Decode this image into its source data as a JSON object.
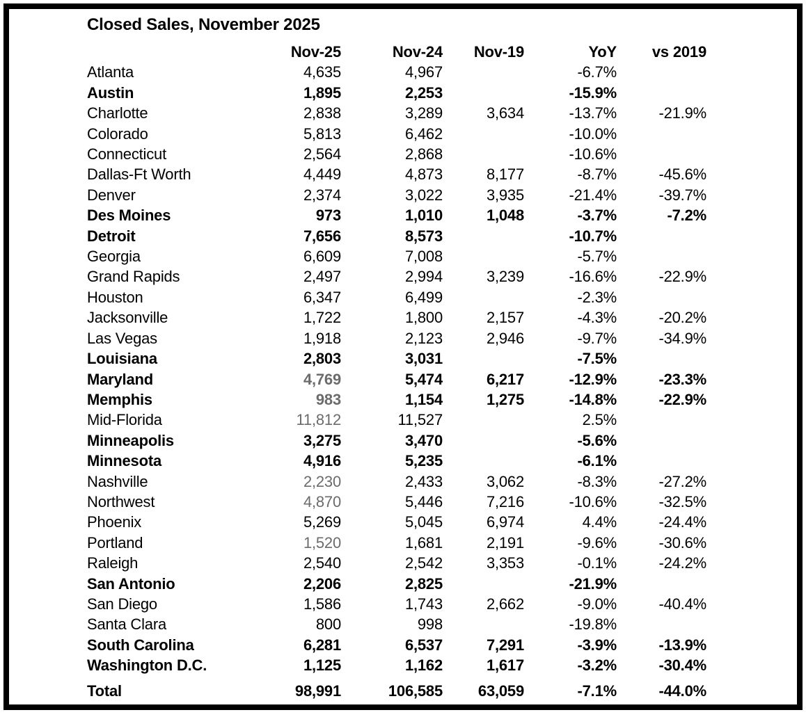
{
  "title": "Closed Sales, November 2025",
  "colors": {
    "text": "#000000",
    "muted_value": "#6b6b6b",
    "frame_border": "#000000",
    "background": "#ffffff"
  },
  "chart_data": {
    "type": "table",
    "title": "Closed Sales, November 2025",
    "columns": [
      "",
      "Nov-25",
      "Nov-24",
      "Nov-19",
      "YoY",
      "vs 2019"
    ],
    "rows": [
      {
        "label": "Atlanta",
        "nov25": "4,635",
        "nov24": "4,967",
        "nov19": "",
        "yoy": "-6.7%",
        "vs2019": "",
        "bold": false,
        "nov25_gray": false
      },
      {
        "label": "Austin",
        "nov25": "1,895",
        "nov24": "2,253",
        "nov19": "",
        "yoy": "-15.9%",
        "vs2019": "",
        "bold": true,
        "nov25_gray": false
      },
      {
        "label": "Charlotte",
        "nov25": "2,838",
        "nov24": "3,289",
        "nov19": "3,634",
        "yoy": "-13.7%",
        "vs2019": "-21.9%",
        "bold": false,
        "nov25_gray": false
      },
      {
        "label": "Colorado",
        "nov25": "5,813",
        "nov24": "6,462",
        "nov19": "",
        "yoy": "-10.0%",
        "vs2019": "",
        "bold": false,
        "nov25_gray": false
      },
      {
        "label": "Connecticut",
        "nov25": "2,564",
        "nov24": "2,868",
        "nov19": "",
        "yoy": "-10.6%",
        "vs2019": "",
        "bold": false,
        "nov25_gray": false
      },
      {
        "label": "Dallas-Ft Worth",
        "nov25": "4,449",
        "nov24": "4,873",
        "nov19": "8,177",
        "yoy": "-8.7%",
        "vs2019": "-45.6%",
        "bold": false,
        "nov25_gray": false
      },
      {
        "label": "Denver",
        "nov25": "2,374",
        "nov24": "3,022",
        "nov19": "3,935",
        "yoy": "-21.4%",
        "vs2019": "-39.7%",
        "bold": false,
        "nov25_gray": false
      },
      {
        "label": "Des Moines",
        "nov25": "973",
        "nov24": "1,010",
        "nov19": "1,048",
        "yoy": "-3.7%",
        "vs2019": "-7.2%",
        "bold": true,
        "nov25_gray": false
      },
      {
        "label": "Detroit",
        "nov25": "7,656",
        "nov24": "8,573",
        "nov19": "",
        "yoy": "-10.7%",
        "vs2019": "",
        "bold": true,
        "nov25_gray": false
      },
      {
        "label": "Georgia",
        "nov25": "6,609",
        "nov24": "7,008",
        "nov19": "",
        "yoy": "-5.7%",
        "vs2019": "",
        "bold": false,
        "nov25_gray": false
      },
      {
        "label": "Grand Rapids",
        "nov25": "2,497",
        "nov24": "2,994",
        "nov19": "3,239",
        "yoy": "-16.6%",
        "vs2019": "-22.9%",
        "bold": false,
        "nov25_gray": false
      },
      {
        "label": "Houston",
        "nov25": "6,347",
        "nov24": "6,499",
        "nov19": "",
        "yoy": "-2.3%",
        "vs2019": "",
        "bold": false,
        "nov25_gray": false
      },
      {
        "label": "Jacksonville",
        "nov25": "1,722",
        "nov24": "1,800",
        "nov19": "2,157",
        "yoy": "-4.3%",
        "vs2019": "-20.2%",
        "bold": false,
        "nov25_gray": false
      },
      {
        "label": "Las Vegas",
        "nov25": "1,918",
        "nov24": "2,123",
        "nov19": "2,946",
        "yoy": "-9.7%",
        "vs2019": "-34.9%",
        "bold": false,
        "nov25_gray": false
      },
      {
        "label": "Louisiana",
        "nov25": "2,803",
        "nov24": "3,031",
        "nov19": "",
        "yoy": "-7.5%",
        "vs2019": "",
        "bold": true,
        "nov25_gray": false
      },
      {
        "label": "Maryland",
        "nov25": "4,769",
        "nov24": "5,474",
        "nov19": "6,217",
        "yoy": "-12.9%",
        "vs2019": "-23.3%",
        "bold": true,
        "nov25_gray": true
      },
      {
        "label": "Memphis",
        "nov25": "983",
        "nov24": "1,154",
        "nov19": "1,275",
        "yoy": "-14.8%",
        "vs2019": "-22.9%",
        "bold": true,
        "nov25_gray": true
      },
      {
        "label": "Mid-Florida",
        "nov25": "11,812",
        "nov24": "11,527",
        "nov19": "",
        "yoy": "2.5%",
        "vs2019": "",
        "bold": false,
        "nov25_gray": true
      },
      {
        "label": "Minneapolis",
        "nov25": "3,275",
        "nov24": "3,470",
        "nov19": "",
        "yoy": "-5.6%",
        "vs2019": "",
        "bold": true,
        "nov25_gray": false
      },
      {
        "label": "Minnesota",
        "nov25": "4,916",
        "nov24": "5,235",
        "nov19": "",
        "yoy": "-6.1%",
        "vs2019": "",
        "bold": true,
        "nov25_gray": false
      },
      {
        "label": "Nashville",
        "nov25": "2,230",
        "nov24": "2,433",
        "nov19": "3,062",
        "yoy": "-8.3%",
        "vs2019": "-27.2%",
        "bold": false,
        "nov25_gray": true
      },
      {
        "label": "Northwest",
        "nov25": "4,870",
        "nov24": "5,446",
        "nov19": "7,216",
        "yoy": "-10.6%",
        "vs2019": "-32.5%",
        "bold": false,
        "nov25_gray": true
      },
      {
        "label": "Phoenix",
        "nov25": "5,269",
        "nov24": "5,045",
        "nov19": "6,974",
        "yoy": "4.4%",
        "vs2019": "-24.4%",
        "bold": false,
        "nov25_gray": false
      },
      {
        "label": "Portland",
        "nov25": "1,520",
        "nov24": "1,681",
        "nov19": "2,191",
        "yoy": "-9.6%",
        "vs2019": "-30.6%",
        "bold": false,
        "nov25_gray": true
      },
      {
        "label": "Raleigh",
        "nov25": "2,540",
        "nov24": "2,542",
        "nov19": "3,353",
        "yoy": "-0.1%",
        "vs2019": "-24.2%",
        "bold": false,
        "nov25_gray": false
      },
      {
        "label": "San Antonio",
        "nov25": "2,206",
        "nov24": "2,825",
        "nov19": "",
        "yoy": "-21.9%",
        "vs2019": "",
        "bold": true,
        "nov25_gray": false
      },
      {
        "label": "San Diego",
        "nov25": "1,586",
        "nov24": "1,743",
        "nov19": "2,662",
        "yoy": "-9.0%",
        "vs2019": "-40.4%",
        "bold": false,
        "nov25_gray": false
      },
      {
        "label": "Santa Clara",
        "nov25": "800",
        "nov24": "998",
        "nov19": "",
        "yoy": "-19.8%",
        "vs2019": "",
        "bold": false,
        "nov25_gray": false
      },
      {
        "label": "South Carolina",
        "nov25": "6,281",
        "nov24": "6,537",
        "nov19": "7,291",
        "yoy": "-3.9%",
        "vs2019": "-13.9%",
        "bold": true,
        "nov25_gray": false
      },
      {
        "label": "Washington D.C.",
        "nov25": "1,125",
        "nov24": "1,162",
        "nov19": "1,617",
        "yoy": "-3.2%",
        "vs2019": "-30.4%",
        "bold": true,
        "nov25_gray": false
      }
    ],
    "total": {
      "label": "Total",
      "nov25": "98,991",
      "nov24": "106,585",
      "nov19": "63,059",
      "yoy": "-7.1%",
      "vs2019": "-44.0%"
    }
  }
}
